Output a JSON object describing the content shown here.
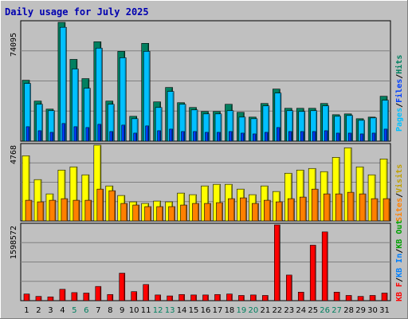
{
  "window": {
    "title": "Daily usage for July 2025"
  },
  "colors": {
    "background": "#c0c0c0",
    "title": "#0000b0",
    "hits": "#008060",
    "files": "#0040ff",
    "pages": "#00c0ff",
    "visits": "#ffff00",
    "sites": "#ff8000",
    "kbf": "#ff0000",
    "kbin": "#0080ff",
    "kbout": "#00a000",
    "weekend": "#008060",
    "weekday": "#000000"
  },
  "chart_data": [
    {
      "type": "bar",
      "panel": "hits-files-pages",
      "categories": [
        "1",
        "2",
        "3",
        "4",
        "5",
        "6",
        "7",
        "8",
        "9",
        "10",
        "11",
        "12",
        "13",
        "14",
        "15",
        "16",
        "17",
        "18",
        "19",
        "20",
        "21",
        "22",
        "23",
        "24",
        "25",
        "26",
        "27",
        "28",
        "29",
        "30",
        "31"
      ],
      "weekend_days": [
        "5",
        "6",
        "12",
        "13",
        "19",
        "20",
        "26",
        "27"
      ],
      "max_label": "74095",
      "ymax": 74095,
      "series": [
        {
          "name": "Hits",
          "color_key": "hits",
          "values": [
            38000,
            25000,
            20000,
            74095,
            51000,
            39000,
            62000,
            25000,
            56000,
            15500,
            61000,
            24500,
            33500,
            24000,
            21000,
            18500,
            18500,
            23000,
            18000,
            15000,
            23500,
            32500,
            20500,
            20500,
            20500,
            23500,
            16500,
            17000,
            14000,
            15000,
            28000
          ]
        },
        {
          "name": "Files",
          "color_key": "files",
          "values": [
            36000,
            23000,
            19000,
            71000,
            45000,
            33000,
            58000,
            23000,
            52000,
            14000,
            56000,
            21000,
            31000,
            23000,
            19500,
            17000,
            17000,
            19000,
            15000,
            14000,
            22000,
            30000,
            19000,
            18500,
            19000,
            22000,
            15500,
            16000,
            13000,
            14500,
            25500
          ]
        },
        {
          "name": "Pages",
          "color_key": "pages",
          "values": [
            9000,
            6500,
            5500,
            11000,
            9000,
            8500,
            10500,
            6000,
            10000,
            5000,
            9500,
            6500,
            7500,
            6000,
            6000,
            5500,
            5500,
            6000,
            5000,
            4500,
            5500,
            8500,
            6000,
            6000,
            6000,
            6500,
            5000,
            5000,
            4500,
            5000,
            7500
          ]
        }
      ]
    },
    {
      "type": "bar",
      "panel": "visits-sites",
      "categories": [
        "1",
        "2",
        "3",
        "4",
        "5",
        "6",
        "7",
        "8",
        "9",
        "10",
        "11",
        "12",
        "13",
        "14",
        "15",
        "16",
        "17",
        "18",
        "19",
        "20",
        "21",
        "22",
        "23",
        "24",
        "25",
        "26",
        "27",
        "28",
        "29",
        "30",
        "31"
      ],
      "max_label": "4768",
      "ymax": 4768,
      "series": [
        {
          "name": "Visits",
          "color_key": "visits",
          "values": [
            4100,
            2600,
            1700,
            3200,
            3400,
            2900,
            4768,
            2200,
            1600,
            1200,
            1100,
            1250,
            1200,
            1750,
            1650,
            2200,
            2300,
            2300,
            2000,
            1650,
            2200,
            1850,
            3000,
            3200,
            3300,
            3100,
            4000,
            4600,
            3400,
            2900,
            3900
          ]
        },
        {
          "name": "Sites",
          "color_key": "sites",
          "values": [
            1300,
            1200,
            1300,
            1400,
            1300,
            1300,
            2000,
            1900,
            1100,
            1000,
            900,
            900,
            900,
            1000,
            1100,
            1100,
            1150,
            1400,
            1450,
            1100,
            1300,
            1200,
            1400,
            1500,
            2000,
            1700,
            1700,
            1800,
            1700,
            1400,
            1400
          ]
        }
      ]
    },
    {
      "type": "bar",
      "panel": "kbytes",
      "categories": [
        "1",
        "2",
        "3",
        "4",
        "5",
        "6",
        "7",
        "8",
        "9",
        "10",
        "11",
        "12",
        "13",
        "14",
        "15",
        "16",
        "17",
        "18",
        "19",
        "20",
        "21",
        "22",
        "23",
        "24",
        "25",
        "26",
        "27",
        "28",
        "29",
        "30",
        "31"
      ],
      "max_label": "1598572",
      "ymax": 1598572,
      "series": [
        {
          "name": "KB F",
          "color_key": "kbf",
          "values": [
            140000,
            90000,
            80000,
            240000,
            170000,
            160000,
            300000,
            130000,
            580000,
            190000,
            340000,
            120000,
            100000,
            130000,
            120000,
            120000,
            130000,
            140000,
            110000,
            120000,
            110000,
            1598572,
            540000,
            180000,
            1170000,
            1450000,
            180000,
            110000,
            90000,
            110000,
            160000
          ]
        }
      ]
    }
  ],
  "legend_top": {
    "hits": "Hits",
    "files": "Files",
    "pages": "Pages",
    "sep": "/"
  },
  "legend_mid": {
    "visits": "Visits",
    "sites": "Sites",
    "sep": "/"
  },
  "legend_bot": {
    "kbout": "KB Out",
    "kbin": "KB In",
    "kbf": "KB F",
    "sep": "/"
  }
}
